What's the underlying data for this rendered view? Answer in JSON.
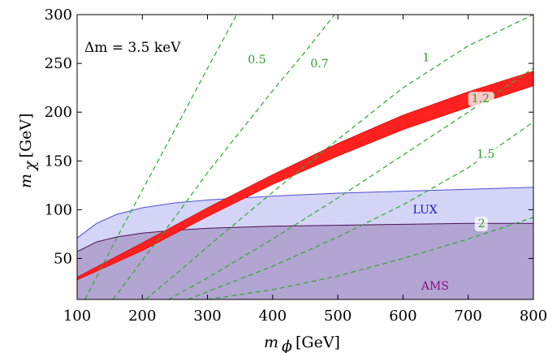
{
  "chart_data": {
    "type": "area",
    "title": "",
    "annotation": "Δm = 3.5  keV",
    "xlabel": {
      "symbol": "m",
      "subscript": "ϕ",
      "unit": "[GeV]"
    },
    "ylabel": {
      "symbol": "m",
      "subscript": "χ",
      "unit": "[GeV]"
    },
    "xlim": [
      100,
      800
    ],
    "ylim": [
      8,
      300
    ],
    "xticks": [
      100,
      200,
      300,
      400,
      500,
      600,
      700,
      800
    ],
    "yticks": [
      50,
      100,
      150,
      200,
      250,
      300
    ],
    "grid": false,
    "regions": [
      {
        "name": "LUX",
        "color": "#a9a9f0",
        "edge_color": "#5050d8",
        "label_color": "#1c1cc8",
        "label_at": [
          615,
          96
        ],
        "upper_boundary": [
          [
            100,
            71
          ],
          [
            130,
            86
          ],
          [
            160,
            95
          ],
          [
            200,
            102
          ],
          [
            250,
            107
          ],
          [
            300,
            110
          ],
          [
            400,
            114
          ],
          [
            500,
            117
          ],
          [
            600,
            119
          ],
          [
            700,
            121
          ],
          [
            800,
            123
          ]
        ]
      },
      {
        "name": "AMS",
        "color": "#ad9ccb",
        "edge_color": "#4a1050",
        "label_color": "#8a0f8a",
        "label_at": [
          628,
          18
        ],
        "upper_boundary": [
          [
            100,
            57
          ],
          [
            130,
            67
          ],
          [
            160,
            72
          ],
          [
            200,
            76
          ],
          [
            250,
            79
          ],
          [
            300,
            81
          ],
          [
            400,
            83
          ],
          [
            500,
            84
          ],
          [
            600,
            85
          ],
          [
            700,
            86
          ],
          [
            800,
            86
          ]
        ]
      }
    ],
    "band": {
      "color": "#ff2020",
      "lower": [
        [
          100,
          28
        ],
        [
          200,
          58
        ],
        [
          300,
          93
        ],
        [
          400,
          126
        ],
        [
          500,
          155
        ],
        [
          600,
          182
        ],
        [
          700,
          205
        ],
        [
          800,
          227
        ]
      ],
      "upper": [
        [
          100,
          31
        ],
        [
          200,
          66
        ],
        [
          300,
          102
        ],
        [
          400,
          136
        ],
        [
          500,
          168
        ],
        [
          600,
          197
        ],
        [
          700,
          221
        ],
        [
          800,
          242
        ]
      ]
    },
    "contours": [
      {
        "label": "0.5",
        "label_at": [
          362,
          250
        ],
        "points": [
          [
            112,
            8
          ],
          [
            160,
            70
          ],
          [
            200,
            120
          ],
          [
            250,
            182
          ],
          [
            300,
            245
          ],
          [
            345,
            300
          ]
        ]
      },
      {
        "label": "0.7",
        "label_at": [
          458,
          246
        ],
        "points": [
          [
            155,
            8
          ],
          [
            200,
            48
          ],
          [
            250,
            92
          ],
          [
            300,
            138
          ],
          [
            350,
            180
          ],
          [
            400,
            222
          ],
          [
            450,
            262
          ],
          [
            495,
            300
          ]
        ]
      },
      {
        "label": "1",
        "label_at": [
          630,
          252
        ],
        "points": [
          [
            205,
            8
          ],
          [
            250,
            33
          ],
          [
            300,
            62
          ],
          [
            400,
            118
          ],
          [
            500,
            172
          ],
          [
            600,
            225
          ],
          [
            700,
            268
          ],
          [
            800,
            300
          ]
        ]
      },
      {
        "label": "1.2",
        "label_at": [
          705,
          210
        ],
        "points": [
          [
            240,
            8
          ],
          [
            300,
            30
          ],
          [
            400,
            70
          ],
          [
            500,
            112
          ],
          [
            600,
            156
          ],
          [
            700,
            200
          ],
          [
            800,
            245
          ]
        ]
      },
      {
        "label": "1.5",
        "label_at": [
          713,
          153
        ],
        "points": [
          [
            270,
            8
          ],
          [
            300,
            16
          ],
          [
            400,
            42
          ],
          [
            500,
            72
          ],
          [
            600,
            105
          ],
          [
            700,
            143
          ],
          [
            800,
            190
          ]
        ]
      },
      {
        "label": "2",
        "label_at": [
          715,
          82
        ],
        "points": [
          [
            300,
            8
          ],
          [
            400,
            18
          ],
          [
            500,
            32
          ],
          [
            600,
            50
          ],
          [
            700,
            70
          ],
          [
            800,
            92
          ]
        ]
      }
    ]
  }
}
